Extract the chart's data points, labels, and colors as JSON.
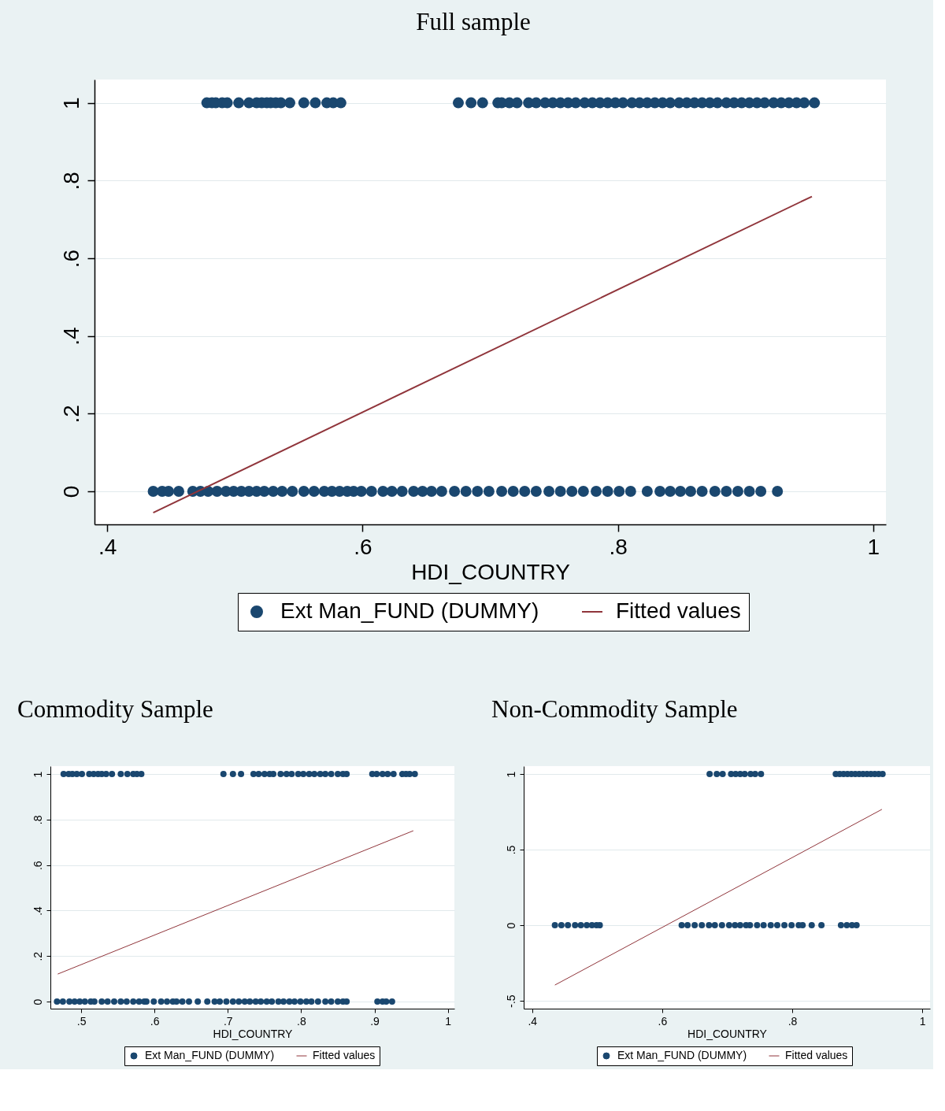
{
  "chart_data": [
    {
      "type": "scatter",
      "title": "Full sample",
      "xlabel": "HDI_COUNTRY",
      "xlim": [
        0.39,
        1.01
      ],
      "ylim": [
        -0.085,
        1.06
      ],
      "xticks": [
        {
          "value": 0.4,
          "label": ".4"
        },
        {
          "value": 0.6,
          "label": ".6"
        },
        {
          "value": 0.8,
          "label": ".8"
        },
        {
          "value": 1,
          "label": "1"
        }
      ],
      "yticks": [
        {
          "value": 0,
          "label": "0"
        },
        {
          "value": 0.2,
          "label": ".2"
        },
        {
          "value": 0.4,
          "label": ".4"
        },
        {
          "value": 0.6,
          "label": ".6"
        },
        {
          "value": 0.8,
          "label": ".8"
        },
        {
          "value": 1,
          "label": "1"
        }
      ],
      "grid": "y",
      "legend": "bottom",
      "series": [
        {
          "name": "Ext Man_FUND (DUMMY)",
          "type": "scatter",
          "marker": "circle",
          "color": "#1a476f",
          "x": [
            0.478,
            0.482,
            0.485,
            0.49,
            0.494,
            0.503,
            0.511,
            0.517,
            0.521,
            0.525,
            0.528,
            0.532,
            0.536,
            0.543,
            0.554,
            0.563,
            0.572,
            0.577,
            0.583,
            0.675,
            0.685,
            0.694,
            0.706,
            0.709,
            0.715,
            0.721,
            0.73,
            0.736,
            0.743,
            0.749,
            0.755,
            0.761,
            0.767,
            0.774,
            0.78,
            0.786,
            0.792,
            0.798,
            0.804,
            0.811,
            0.817,
            0.823,
            0.829,
            0.835,
            0.841,
            0.848,
            0.854,
            0.86,
            0.866,
            0.872,
            0.878,
            0.885,
            0.891,
            0.897,
            0.903,
            0.909,
            0.915,
            0.922,
            0.928,
            0.934,
            0.94,
            0.946,
            0.954,
            0.436,
            0.443,
            0.448,
            0.456,
            0.467,
            0.473,
            0.479,
            0.486,
            0.493,
            0.499,
            0.505,
            0.511,
            0.517,
            0.523,
            0.53,
            0.537,
            0.545,
            0.554,
            0.562,
            0.57,
            0.576,
            0.582,
            0.588,
            0.593,
            0.599,
            0.607,
            0.616,
            0.623,
            0.631,
            0.64,
            0.647,
            0.654,
            0.662,
            0.672,
            0.681,
            0.69,
            0.699,
            0.709,
            0.718,
            0.727,
            0.736,
            0.746,
            0.755,
            0.764,
            0.773,
            0.783,
            0.792,
            0.801,
            0.81,
            0.823,
            0.833,
            0.841,
            0.849,
            0.857,
            0.866,
            0.876,
            0.885,
            0.894,
            0.903,
            0.912,
            0.925
          ],
          "values": [
            1,
            1,
            1,
            1,
            1,
            1,
            1,
            1,
            1,
            1,
            1,
            1,
            1,
            1,
            1,
            1,
            1,
            1,
            1,
            1,
            1,
            1,
            1,
            1,
            1,
            1,
            1,
            1,
            1,
            1,
            1,
            1,
            1,
            1,
            1,
            1,
            1,
            1,
            1,
            1,
            1,
            1,
            1,
            1,
            1,
            1,
            1,
            1,
            1,
            1,
            1,
            1,
            1,
            1,
            1,
            1,
            1,
            1,
            1,
            1,
            1,
            1,
            1,
            0,
            0,
            0,
            0,
            0,
            0,
            0,
            0,
            0,
            0,
            0,
            0,
            0,
            0,
            0,
            0,
            0,
            0,
            0,
            0,
            0,
            0,
            0,
            0,
            0,
            0,
            0,
            0,
            0,
            0,
            0,
            0,
            0,
            0,
            0,
            0,
            0,
            0,
            0,
            0,
            0,
            0,
            0,
            0,
            0,
            0,
            0,
            0,
            0,
            0,
            0,
            0,
            0,
            0,
            0,
            0,
            0,
            0,
            0,
            0,
            0
          ]
        },
        {
          "name": "Fitted values",
          "type": "line",
          "color": "#90353b",
          "x": [
            0.436,
            0.952
          ],
          "values": [
            -0.055,
            0.759
          ]
        }
      ]
    },
    {
      "type": "scatter",
      "title": "Commodity Sample",
      "xlabel": "HDI_COUNTRY",
      "xlim": [
        0.458,
        1.009
      ],
      "ylim": [
        -0.031,
        1.035
      ],
      "xticks": [
        {
          "value": 0.5,
          "label": ".5"
        },
        {
          "value": 0.6,
          "label": ".6"
        },
        {
          "value": 0.7,
          "label": ".7"
        },
        {
          "value": 0.8,
          "label": ".8"
        },
        {
          "value": 0.9,
          "label": ".9"
        },
        {
          "value": 1,
          "label": "1"
        }
      ],
      "yticks": [
        {
          "value": 0,
          "label": "0"
        },
        {
          "value": 0.2,
          "label": ".2"
        },
        {
          "value": 0.4,
          "label": ".4"
        },
        {
          "value": 0.6,
          "label": ".6"
        },
        {
          "value": 0.8,
          "label": ".8"
        },
        {
          "value": 1,
          "label": "1"
        }
      ],
      "grid": "y",
      "legend": "bottom",
      "series": [
        {
          "name": "Ext Man_FUND (DUMMY)",
          "type": "scatter",
          "marker": "circle",
          "color": "#1a476f",
          "x": [
            0.476,
            0.483,
            0.488,
            0.494,
            0.501,
            0.511,
            0.517,
            0.523,
            0.528,
            0.534,
            0.542,
            0.554,
            0.563,
            0.571,
            0.576,
            0.582,
            0.694,
            0.707,
            0.718,
            0.735,
            0.742,
            0.75,
            0.757,
            0.762,
            0.772,
            0.78,
            0.787,
            0.796,
            0.803,
            0.811,
            0.818,
            0.826,
            0.833,
            0.841,
            0.85,
            0.857,
            0.862,
            0.897,
            0.903,
            0.911,
            0.918,
            0.926,
            0.938,
            0.943,
            0.948,
            0.955,
            0.467,
            0.475,
            0.484,
            0.491,
            0.498,
            0.505,
            0.513,
            0.518,
            0.528,
            0.536,
            0.545,
            0.554,
            0.562,
            0.571,
            0.579,
            0.586,
            0.589,
            0.599,
            0.609,
            0.617,
            0.625,
            0.63,
            0.638,
            0.647,
            0.659,
            0.672,
            0.682,
            0.689,
            0.698,
            0.707,
            0.715,
            0.723,
            0.73,
            0.738,
            0.745,
            0.753,
            0.76,
            0.769,
            0.776,
            0.784,
            0.791,
            0.799,
            0.807,
            0.814,
            0.823,
            0.833,
            0.841,
            0.85,
            0.857,
            0.862,
            0.904,
            0.911,
            0.916,
            0.924
          ],
          "values": [
            1,
            1,
            1,
            1,
            1,
            1,
            1,
            1,
            1,
            1,
            1,
            1,
            1,
            1,
            1,
            1,
            1,
            1,
            1,
            1,
            1,
            1,
            1,
            1,
            1,
            1,
            1,
            1,
            1,
            1,
            1,
            1,
            1,
            1,
            1,
            1,
            1,
            1,
            1,
            1,
            1,
            1,
            1,
            1,
            1,
            1,
            0,
            0,
            0,
            0,
            0,
            0,
            0,
            0,
            0,
            0,
            0,
            0,
            0,
            0,
            0,
            0,
            0,
            0,
            0,
            0,
            0,
            0,
            0,
            0,
            0,
            0,
            0,
            0,
            0,
            0,
            0,
            0,
            0,
            0,
            0,
            0,
            0,
            0,
            0,
            0,
            0,
            0,
            0,
            0,
            0,
            0,
            0,
            0,
            0,
            0,
            0,
            0,
            0,
            0
          ]
        },
        {
          "name": "Fitted values",
          "type": "line",
          "color": "#90353b",
          "x": [
            0.468,
            0.953
          ],
          "values": [
            0.121,
            0.751
          ]
        }
      ]
    },
    {
      "type": "scatter",
      "title": "Non-Commodity Sample",
      "xlabel": "HDI_COUNTRY",
      "xlim": [
        0.387,
        1.012
      ],
      "ylim": [
        -0.552,
        1.052
      ],
      "xticks": [
        {
          "value": 0.4,
          "label": ".4"
        },
        {
          "value": 0.6,
          "label": ".6"
        },
        {
          "value": 0.8,
          "label": ".8"
        },
        {
          "value": 1,
          "label": "1"
        }
      ],
      "yticks": [
        {
          "value": -0.5,
          "label": "-.5"
        },
        {
          "value": 0,
          "label": "0"
        },
        {
          "value": 0.5,
          "label": ".5"
        },
        {
          "value": 1,
          "label": "1"
        }
      ],
      "grid": "y",
      "legend": "bottom",
      "series": [
        {
          "name": "Ext Man_FUND (DUMMY)",
          "type": "scatter",
          "marker": "circle",
          "color": "#1a476f",
          "x": [
            0.673,
            0.684,
            0.693,
            0.706,
            0.713,
            0.72,
            0.727,
            0.736,
            0.743,
            0.752,
            0.867,
            0.873,
            0.879,
            0.885,
            0.891,
            0.897,
            0.903,
            0.909,
            0.915,
            0.921,
            0.927,
            0.933,
            0.939,
            0.435,
            0.445,
            0.455,
            0.466,
            0.475,
            0.484,
            0.492,
            0.499,
            0.504,
            0.63,
            0.639,
            0.65,
            0.661,
            0.672,
            0.681,
            0.692,
            0.703,
            0.712,
            0.72,
            0.729,
            0.735,
            0.746,
            0.756,
            0.767,
            0.777,
            0.788,
            0.799,
            0.81,
            0.816,
            0.83,
            0.845,
            0.875,
            0.884,
            0.892,
            0.899
          ],
          "values": [
            1,
            1,
            1,
            1,
            1,
            1,
            1,
            1,
            1,
            1,
            1,
            1,
            1,
            1,
            1,
            1,
            1,
            1,
            1,
            1,
            1,
            1,
            1,
            0,
            0,
            0,
            0,
            0,
            0,
            0,
            0,
            0,
            0,
            0,
            0,
            0,
            0,
            0,
            0,
            0,
            0,
            0,
            0,
            0,
            0,
            0,
            0,
            0,
            0,
            0,
            0,
            0,
            0,
            0,
            0,
            0,
            0,
            0
          ]
        },
        {
          "name": "Fitted values",
          "type": "line",
          "color": "#90353b",
          "x": [
            0.435,
            0.938
          ],
          "values": [
            -0.396,
            0.766
          ]
        }
      ]
    }
  ]
}
